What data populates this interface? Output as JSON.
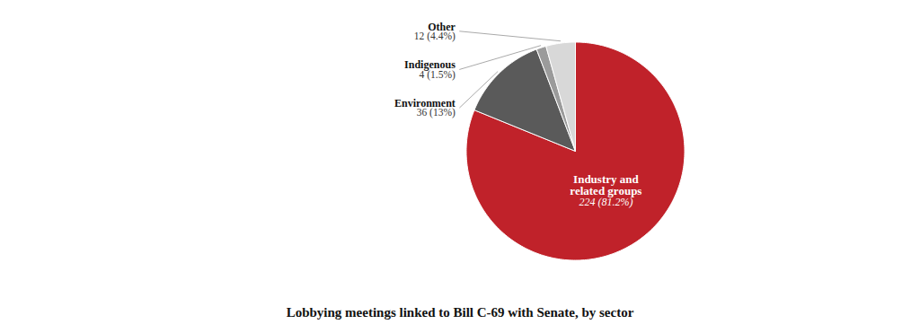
{
  "chart_data": {
    "type": "pie",
    "title": "Lobbying meetings linked to Bill C-69 with Senate, by sector",
    "categories": [
      "Industry and\nrelated groups",
      "Environment",
      "Indigenous",
      "Other"
    ],
    "values": [
      224,
      36,
      4,
      12
    ],
    "value_labels": [
      "224 (81.2%)",
      "36 (13%)",
      "4 (1.5%)",
      "12 (4.4%)"
    ],
    "colors": [
      "#c0222a",
      "#5a5a5a",
      "#9b9b9b",
      "#d8d8d8"
    ],
    "data_labels": true
  }
}
